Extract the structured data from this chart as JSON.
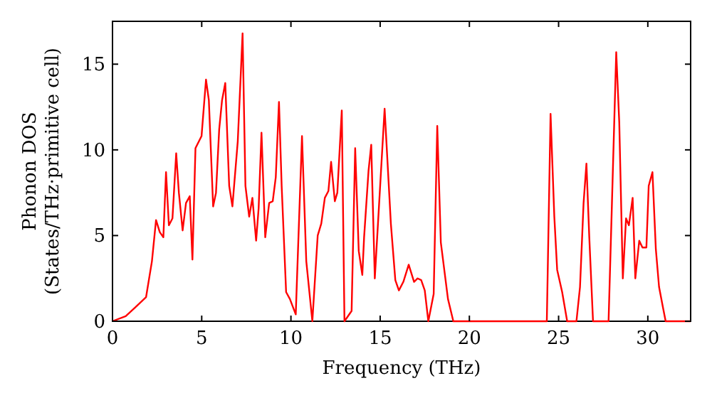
{
  "chart_data": {
    "type": "line",
    "xlabel": "Frequency (THz)",
    "ylabel": "Phonon DOS\n(States/THz·primitive cell)",
    "xlim": [
      0,
      32.4
    ],
    "ylim": [
      0,
      17.5
    ],
    "xticks": [
      0,
      5,
      10,
      15,
      20,
      25,
      30
    ],
    "yticks": [
      0,
      5,
      10,
      15
    ],
    "grid": false,
    "marker": "none",
    "line_style": "solid",
    "series": [
      {
        "color": "#ff0000",
        "x": [
          0,
          0.74,
          1.27,
          1.88,
          2.21,
          2.44,
          2.65,
          2.85,
          3.0,
          3.16,
          3.36,
          3.57,
          3.72,
          3.93,
          4.12,
          4.33,
          4.48,
          4.65,
          4.99,
          5.24,
          5.4,
          5.64,
          5.8,
          5.98,
          6.14,
          6.32,
          6.54,
          6.72,
          7.02,
          7.29,
          7.45,
          7.66,
          7.84,
          8.05,
          8.19,
          8.35,
          8.56,
          8.78,
          8.98,
          9.15,
          9.33,
          9.48,
          9.73,
          9.94,
          10.27,
          10.62,
          10.86,
          11.2,
          11.5,
          11.7,
          11.9,
          12.1,
          12.25,
          12.46,
          12.6,
          12.85,
          13.0,
          13.4,
          13.6,
          13.8,
          14.0,
          14.1,
          14.35,
          14.5,
          14.7,
          15.25,
          15.6,
          15.85,
          16.05,
          16.3,
          16.6,
          16.9,
          17.1,
          17.3,
          17.5,
          17.7,
          18.0,
          18.2,
          18.4,
          18.8,
          19.1,
          24.34,
          24.55,
          24.76,
          24.92,
          25.2,
          25.48,
          26.0,
          26.2,
          26.4,
          26.56,
          26.72,
          26.93,
          27.8,
          27.99,
          28.23,
          28.4,
          28.6,
          28.78,
          28.94,
          29.15,
          29.3,
          29.52,
          29.7,
          29.92,
          30.05,
          30.26,
          30.45,
          30.63,
          30.85,
          31.0,
          32.4
        ],
        "values": [
          0,
          0.3,
          0.8,
          1.4,
          3.5,
          5.9,
          5.2,
          4.9,
          8.7,
          5.6,
          6.0,
          9.8,
          7.5,
          5.3,
          6.9,
          7.3,
          3.6,
          10.1,
          10.8,
          14.1,
          12.9,
          6.7,
          7.5,
          11.2,
          12.9,
          13.9,
          7.9,
          6.7,
          10.5,
          16.8,
          7.9,
          6.1,
          7.2,
          4.7,
          6.6,
          11.0,
          4.9,
          6.9,
          7.0,
          8.4,
          12.8,
          7.9,
          1.7,
          1.3,
          0.4,
          10.8,
          3.5,
          0,
          5.0,
          5.7,
          7.2,
          7.6,
          9.3,
          7.0,
          7.5,
          12.3,
          0,
          0.6,
          10.1,
          4.1,
          2.7,
          4.9,
          8.8,
          10.3,
          2.5,
          12.4,
          5.7,
          2.4,
          1.8,
          2.3,
          3.3,
          2.3,
          2.5,
          2.4,
          1.8,
          0,
          1.6,
          11.4,
          4.6,
          1.3,
          0,
          0,
          12.1,
          6.1,
          3.0,
          1.7,
          0,
          0,
          2.0,
          6.9,
          9.2,
          4.9,
          0,
          0,
          6.9,
          15.7,
          11.6,
          2.5,
          6.0,
          5.6,
          7.2,
          2.5,
          4.7,
          4.3,
          4.3,
          7.9,
          8.7,
          4.2,
          2.0,
          0.8,
          0,
          0
        ]
      }
    ]
  }
}
